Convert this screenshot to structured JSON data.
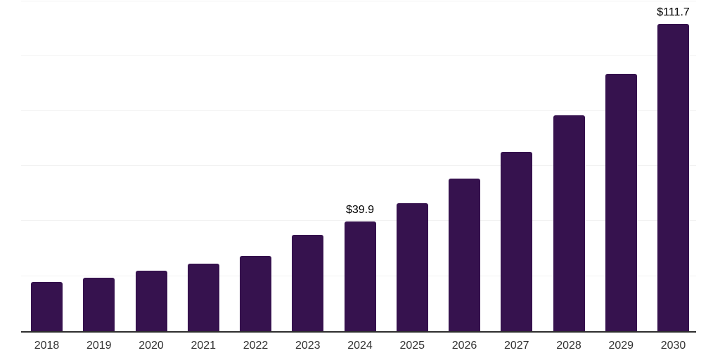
{
  "chart_data": {
    "type": "bar",
    "title": "",
    "xlabel": "",
    "ylabel": "",
    "categories": [
      "2018",
      "2019",
      "2020",
      "2021",
      "2022",
      "2023",
      "2024",
      "2025",
      "2026",
      "2027",
      "2028",
      "2029",
      "2030"
    ],
    "values": [
      17.8,
      19.5,
      21.9,
      24.4,
      27.2,
      35.1,
      39.9,
      46.5,
      55.3,
      65.2,
      78.3,
      93.4,
      111.7
    ],
    "value_labels": {
      "2024": "$39.9",
      "2030": "$111.7"
    },
    "ylim": [
      0,
      120
    ],
    "gridline_step": 20,
    "grid": "horizontal",
    "legend_position": "none",
    "colors": {
      "bar": "#36124E",
      "axis_line": "#2E2E2E",
      "gridline": "#F2F2F2",
      "tick_label": "#333333",
      "value_label": "#000000",
      "background": "#FFFFFF"
    }
  }
}
